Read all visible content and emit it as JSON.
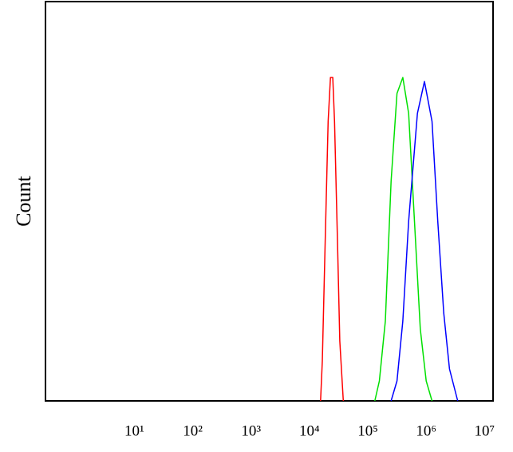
{
  "chart_data": {
    "type": "line",
    "ylabel": "Count",
    "xscale": "log",
    "xlim": [
      0.3,
      14000000
    ],
    "ylim": [
      0,
      100
    ],
    "xticks": [
      {
        "value": 10,
        "label": "10¹"
      },
      {
        "value": 100,
        "label": "10²"
      },
      {
        "value": 1000,
        "label": "10³"
      },
      {
        "value": 10000,
        "label": "10⁴"
      },
      {
        "value": 100000,
        "label": "10⁵"
      },
      {
        "value": 1000000,
        "label": "10⁶"
      },
      {
        "value": 10000000,
        "label": "10⁷"
      }
    ],
    "series": [
      {
        "color": "#ff0000",
        "x": [
          15500,
          16600,
          18600,
          20900,
          22900,
          25100,
          26900,
          30200,
          33100,
          38000
        ],
        "values": [
          0,
          10,
          40,
          70,
          81,
          81,
          70,
          40,
          15,
          0
        ]
      },
      {
        "color": "#00e000",
        "x": [
          132000,
          158000,
          200000,
          251000,
          316000,
          398000,
          501000,
          631000,
          794000,
          1000000,
          1260000
        ],
        "values": [
          0,
          5,
          20,
          55,
          77,
          81,
          72,
          45,
          18,
          5,
          0
        ]
      },
      {
        "color": "#0000ff",
        "x": [
          251000,
          316000,
          398000,
          501000,
          708000,
          933000,
          1260000,
          1580000,
          2000000,
          2510000,
          3470000
        ],
        "values": [
          0,
          5,
          20,
          45,
          72,
          80,
          70,
          45,
          22,
          8,
          0
        ]
      }
    ]
  }
}
